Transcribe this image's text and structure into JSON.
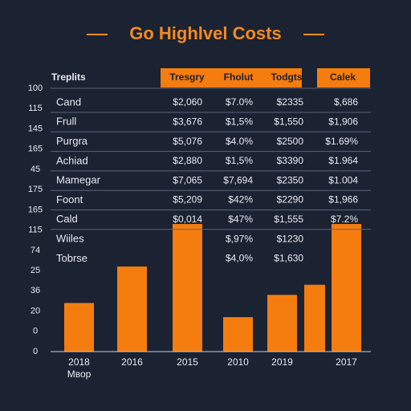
{
  "chart_data": {
    "type": "bar",
    "title": "Go Highlvel Costs",
    "categories": [
      "2018",
      "2016",
      "2015",
      "2010",
      "2019",
      null,
      "2017"
    ],
    "x_sublabel": "Mвор",
    "values": [
      2.4,
      4.2,
      6.3,
      1.7,
      2.8,
      3.3,
      6.3
    ],
    "color": "#f57c0f",
    "ylim": [
      0,
      13
    ],
    "yticks": [
      {
        "value": 13,
        "label": "100"
      },
      {
        "value": 12,
        "label": "115"
      },
      {
        "value": 11,
        "label": "145"
      },
      {
        "value": 10,
        "label": "165"
      },
      {
        "value": 9,
        "label": "45"
      },
      {
        "value": 8,
        "label": "175"
      },
      {
        "value": 7,
        "label": "165"
      },
      {
        "value": 6,
        "label": "115"
      },
      {
        "value": 5,
        "label": "74"
      },
      {
        "value": 4,
        "label": "25"
      },
      {
        "value": 3,
        "label": "36"
      },
      {
        "value": 2,
        "label": "20"
      },
      {
        "value": 1,
        "label": "0"
      },
      0
    ]
  },
  "table": {
    "header_label": "Treplits",
    "columns": [
      "Tresgry",
      "Fholut",
      "Todgts",
      "Calek"
    ],
    "rows": [
      {
        "label": "Cand",
        "cells": [
          "$2,060",
          "$7.0%",
          "$2335",
          "$,686"
        ]
      },
      {
        "label": "Frull",
        "cells": [
          "$3,676",
          "$1,5%",
          "$1,550",
          "$1,906"
        ]
      },
      {
        "label": "Purgra",
        "cells": [
          "$5,076",
          "$4.0%",
          "$2500",
          "$1.69%"
        ]
      },
      {
        "label": "Achiad",
        "cells": [
          "$2,880",
          "$1,5%",
          "$3390",
          "$1.964"
        ]
      },
      {
        "label": "Mamegar",
        "cells": [
          "$7,065",
          "$7,694",
          "$2350",
          "$1.004"
        ]
      },
      {
        "label": "Foont",
        "cells": [
          "$5,209",
          "$42%",
          "$2290",
          "$1,966"
        ]
      },
      {
        "label": "Cald",
        "cells": [
          "$0,014",
          "$47%",
          "$1,555",
          "$7.2%"
        ]
      },
      {
        "label": "Wiiles",
        "cells": [
          null,
          "$,97%",
          "$1230",
          null
        ]
      },
      {
        "label": "Tobrse",
        "cells": [
          null,
          "$4,0%",
          "$1,630",
          null
        ]
      }
    ]
  }
}
